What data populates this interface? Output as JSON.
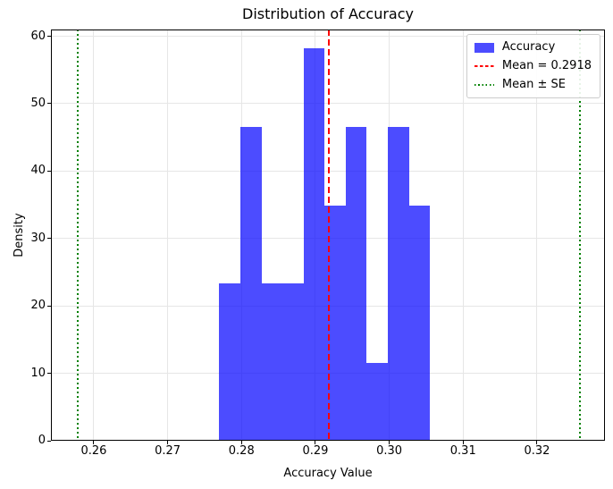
{
  "chart_data": {
    "type": "bar",
    "subtype": "histogram",
    "title": "Distribution of Accuracy",
    "xlabel": "Accuracy Value",
    "ylabel": "Density",
    "xlim": [
      0.2542,
      0.3292
    ],
    "ylim": [
      0,
      61.0
    ],
    "grid": true,
    "x_tick_values": [
      0.26,
      0.27,
      0.28,
      0.29,
      0.3,
      0.31,
      0.32
    ],
    "x_tick_labels": [
      "0.26",
      "0.27",
      "0.28",
      "0.29",
      "0.30",
      "0.31",
      "0.32"
    ],
    "y_tick_values": [
      0,
      10,
      20,
      30,
      40,
      50,
      60
    ],
    "y_tick_labels": [
      "0",
      "10",
      "20",
      "30",
      "40",
      "50",
      "60"
    ],
    "bins": {
      "edges": [
        0.277,
        0.27985,
        0.2827,
        0.28555,
        0.2884,
        0.29125,
        0.2941,
        0.29695,
        0.2998,
        0.30265,
        0.3055
      ],
      "densities": [
        23.3,
        46.6,
        23.3,
        23.3,
        58.2,
        34.9,
        46.6,
        11.6,
        46.6,
        34.9
      ]
    },
    "series_label": "Accuracy",
    "mean_line": {
      "value": 0.2918,
      "color": "#ff0000",
      "style": "dashed"
    },
    "se_lines": {
      "values": [
        0.2578,
        0.3258
      ],
      "color": "#008000",
      "style": "dotted"
    },
    "legend": {
      "position": "upper right",
      "entries": [
        {
          "label": "Accuracy",
          "swatch": "patch",
          "color": "#0000ff",
          "opacity": 0.7
        },
        {
          "label": "Mean = 0.2918",
          "swatch": "dashed-line",
          "color": "#ff0000"
        },
        {
          "label": "Mean ± SE",
          "swatch": "dotted-line",
          "color": "#008000"
        }
      ]
    },
    "colors": {
      "bar": "#0000ff",
      "bar_opacity": 0.7,
      "grid": "#e6e6e6",
      "spine": "#000000",
      "background": "#ffffff"
    }
  }
}
